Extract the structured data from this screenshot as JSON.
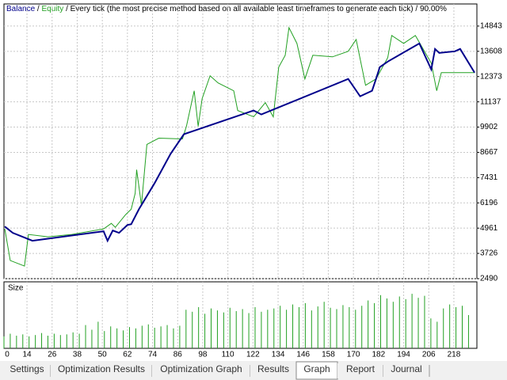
{
  "chart_data": {
    "type": "line",
    "title": "/ Every tick (the most precise method based on all available least timeframes to generate each tick) / 90.00%",
    "separator": "/",
    "series": [
      {
        "name": "Balance",
        "color": "#00008b",
        "x": [
          3.4,
          7.2,
          16.6,
          50.6,
          52.5,
          55,
          58,
          62,
          63.8,
          67.5,
          75,
          82.6,
          89,
          122.3,
          126,
          167.5,
          173.2,
          178.9,
          180.8,
          182.6,
          186.4,
          201.5,
          207.2,
          209,
          211,
          218.5,
          221,
          227.9
        ],
        "values": [
          5039,
          4730,
          4344,
          4807,
          4344,
          4846,
          4730,
          5116,
          5154,
          5888,
          7162,
          8590,
          9555,
          10713,
          10520,
          12257,
          11408,
          11678,
          12257,
          12836,
          13106,
          13994,
          12720,
          13724,
          13531,
          13608,
          13724,
          12566
        ]
      },
      {
        "name": "Equity",
        "color": "#22a022",
        "x": [
          3.4,
          6,
          12.8,
          14.7,
          24,
          35.5,
          50.6,
          54.3,
          56.2,
          61.1,
          63.8,
          65.7,
          66.4,
          68.7,
          71.3,
          77,
          88.3,
          90.2,
          93.9,
          95.8,
          97.7,
          101.5,
          105.3,
          112.8,
          114.7,
          122.3,
          127.9,
          131.7,
          134.3,
          137.4,
          139.2,
          143,
          146.8,
          150.6,
          160,
          167.5,
          171.3,
          175.8,
          180.8,
          186.4,
          188.3,
          194,
          199.6,
          207.2,
          209.8,
          212,
          227.9
        ],
        "values": [
          4923,
          3379,
          3108,
          4653,
          4537,
          4653,
          4923,
          5193,
          5000,
          5617,
          5888,
          6660,
          7818,
          6081,
          9053,
          9362,
          9323,
          9941,
          11678,
          9941,
          11292,
          12411,
          12064,
          11678,
          10713,
          10404,
          11099,
          10404,
          12836,
          13415,
          14766,
          13994,
          12257,
          13415,
          13338,
          13608,
          14187,
          11948,
          12257,
          13299,
          14380,
          13994,
          14380,
          13029,
          11678,
          12566,
          12566
        ]
      }
    ],
    "xlim": [
      3,
      229
    ],
    "ylim": [
      2490,
      15924
    ],
    "xticks": [
      0,
      14,
      26,
      38,
      50,
      62,
      74,
      86,
      98,
      110,
      122,
      134,
      146,
      158,
      170,
      182,
      194,
      206,
      218
    ],
    "yticks": [
      14843,
      13608,
      12373,
      11137,
      9902,
      8667,
      7431,
      6196,
      4961,
      3726,
      2490
    ],
    "grid": true
  },
  "size_chart": {
    "type": "bar",
    "title": "Size",
    "color": "#22a022",
    "ylim": [
      0,
      100
    ],
    "x": [
      0,
      3,
      6,
      9,
      12,
      15,
      18,
      21,
      24,
      27,
      30,
      33,
      36,
      39,
      42,
      45,
      48,
      51,
      54,
      57,
      60,
      63,
      66,
      69,
      72,
      75,
      78,
      81,
      84,
      87,
      90,
      93,
      96,
      99,
      102,
      105,
      108,
      111,
      114,
      117,
      120,
      123,
      126,
      129,
      132,
      135,
      138,
      141,
      144,
      147,
      150,
      153,
      156,
      159,
      162,
      165,
      168,
      171,
      174,
      177,
      180,
      183,
      186,
      189,
      192,
      195,
      198,
      201,
      204,
      207,
      210,
      213,
      216,
      219,
      222,
      225
    ],
    "values": [
      20,
      18,
      22,
      19,
      21,
      18,
      20,
      23,
      19,
      22,
      20,
      21,
      24,
      22,
      35,
      28,
      40,
      26,
      33,
      30,
      27,
      32,
      30,
      34,
      36,
      31,
      33,
      35,
      30,
      34,
      58,
      55,
      62,
      52,
      60,
      57,
      54,
      61,
      56,
      59,
      53,
      62,
      55,
      58,
      60,
      64,
      58,
      66,
      62,
      68,
      57,
      63,
      70,
      61,
      59,
      65,
      62,
      58,
      64,
      72,
      68,
      80,
      75,
      70,
      78,
      74,
      82,
      76,
      79,
      45,
      40,
      60,
      66,
      62,
      64,
      50
    ]
  },
  "tabs": [
    "Settings",
    "Optimization Results",
    "Optimization Graph",
    "Results",
    "Graph",
    "Report",
    "Journal"
  ],
  "active_tab": 4
}
